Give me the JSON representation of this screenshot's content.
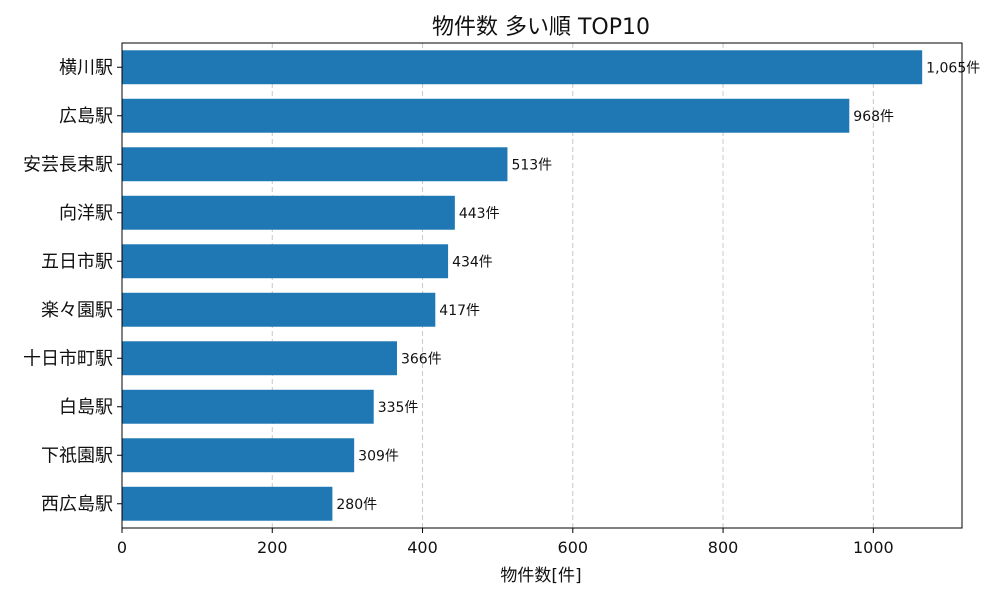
{
  "chart_data": {
    "type": "bar",
    "orientation": "horizontal",
    "title": "物件数 多い順 TOP10",
    "xlabel": "物件数[件]",
    "ylabel": "",
    "xlim": [
      0,
      1118
    ],
    "xticks": [
      0,
      200,
      400,
      600,
      800,
      1000
    ],
    "xtick_labels": [
      "0",
      "200",
      "400",
      "600",
      "800",
      "1000"
    ],
    "grid": "vertical-dashed",
    "bar_color": "#1f77b4",
    "categories": [
      "横川駅",
      "広島駅",
      "安芸長束駅",
      "向洋駅",
      "五日市駅",
      "楽々園駅",
      "十日市町駅",
      "白島駅",
      "下祇園駅",
      "西広島駅"
    ],
    "values": [
      1065,
      968,
      513,
      443,
      434,
      417,
      366,
      335,
      309,
      280
    ],
    "data_labels": [
      "1,065件",
      "968件",
      "513件",
      "443件",
      "434件",
      "417件",
      "366件",
      "335件",
      "309件",
      "280件"
    ]
  }
}
